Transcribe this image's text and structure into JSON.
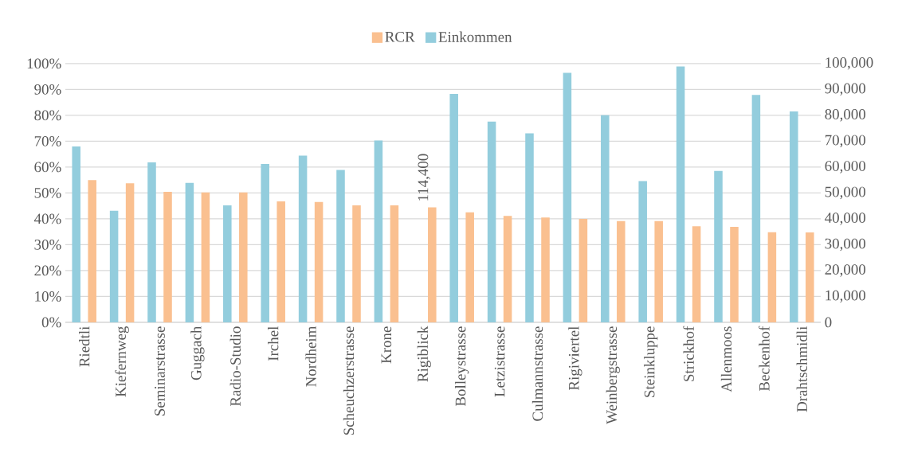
{
  "chart_data": {
    "type": "bar",
    "categories": [
      "Riedtli",
      "Kiefernweg",
      "Seminarstrasse",
      "Guggach",
      "Radio-Studio",
      "Irchel",
      "Nordheim",
      "Scheuchzerstrasse",
      "Krone",
      "Rigiblick",
      "Bolleystrasse",
      "Letzistrasse",
      "Culmannstrasse",
      "Rigiviertel",
      "Weinbergstrasse",
      "Steinkluppe",
      "Strickhof",
      "Allenmoos",
      "Beckenhof",
      "Drahtschmidli"
    ],
    "series": [
      {
        "name": "RCR",
        "color": "#fac090",
        "values": [
          55,
          53.7,
          50.4,
          50.2,
          50.2,
          46.7,
          46.5,
          45.2,
          45.2,
          44.4,
          42.5,
          41.1,
          40.5,
          40.0,
          39.1,
          39.1,
          37.1,
          36.9,
          34.8,
          34.7
        ]
      },
      {
        "name": "Einkommen",
        "color": "#93cddd",
        "axis": "y2",
        "values": [
          68000,
          43100,
          61800,
          53900,
          45200,
          61200,
          64400,
          58900,
          70300,
          null,
          88300,
          77600,
          73000,
          96400,
          80000,
          54600,
          98900,
          58500,
          87900,
          81500
        ],
        "value_labels": [
          null,
          null,
          null,
          null,
          null,
          null,
          null,
          null,
          null,
          "114,400",
          null,
          null,
          null,
          null,
          null,
          null,
          null,
          null,
          null,
          null
        ]
      }
    ],
    "ylim": [
      0,
      100
    ],
    "yticks": [
      {
        "value": 0,
        "label": "0%"
      },
      {
        "value": 10,
        "label": "10%"
      },
      {
        "value": 20,
        "label": "20%"
      },
      {
        "value": 30,
        "label": "30%"
      },
      {
        "value": 40,
        "label": "40%"
      },
      {
        "value": 50,
        "label": "50%"
      },
      {
        "value": 60,
        "label": "60%"
      },
      {
        "value": 70,
        "label": "70%"
      },
      {
        "value": 80,
        "label": "80%"
      },
      {
        "value": 90,
        "label": "90%"
      },
      {
        "value": 100,
        "label": "100%"
      }
    ],
    "y2lim": [
      0,
      100000
    ],
    "y2ticks": [
      0,
      {
        "value": 10000,
        "label": "10,000"
      },
      {
        "value": 20000,
        "label": "20,000"
      },
      {
        "value": 30000,
        "label": "30,000"
      },
      {
        "value": 40000,
        "label": "40,000"
      },
      {
        "value": 50000,
        "label": "50,000"
      },
      {
        "value": 60000,
        "label": "60,000"
      },
      {
        "value": 70000,
        "label": "70,000"
      },
      {
        "value": 80000,
        "label": "80,000"
      },
      {
        "value": 90000,
        "label": "90,000"
      },
      {
        "value": 100000,
        "label": "100,000"
      }
    ],
    "grid": "y",
    "legend": "top"
  }
}
